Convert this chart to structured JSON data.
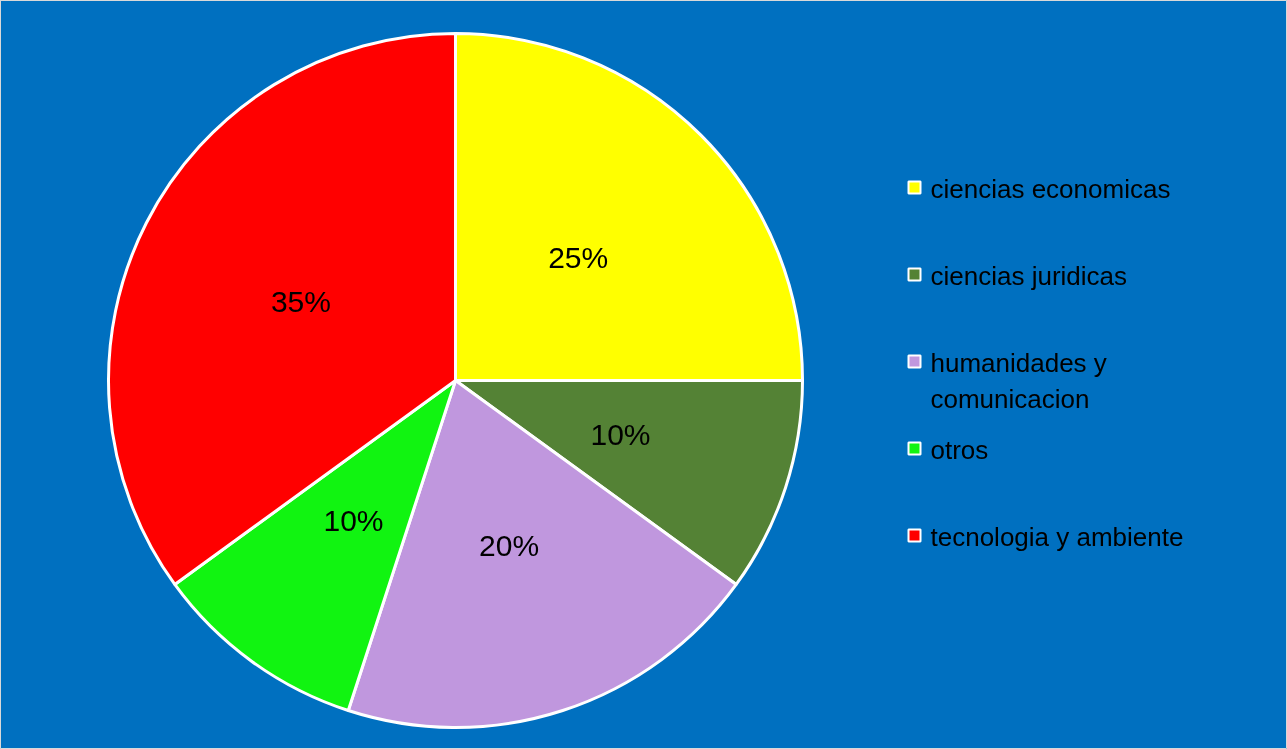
{
  "chart_data": {
    "type": "pie",
    "categories": [
      "ciencias economicas",
      "ciencias juridicas",
      "humanidades y comunicacion",
      "otros",
      "tecnologia y ambiente"
    ],
    "values": [
      25,
      10,
      20,
      10,
      35
    ],
    "colors": [
      "#ffff00",
      "#548235",
      "#c097de",
      "#11f411",
      "#ff0000"
    ],
    "value_labels": [
      "25%",
      "10%",
      "20%",
      "10%",
      "35%"
    ],
    "legend": "right"
  }
}
